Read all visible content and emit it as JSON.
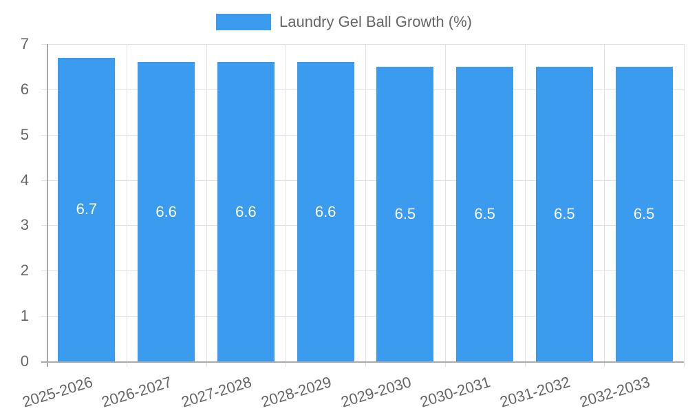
{
  "chart_data": {
    "type": "bar",
    "title": "",
    "legend": {
      "position": "top",
      "entries": [
        "Laundry Gel Ball Growth (%)"
      ]
    },
    "categories": [
      "2025-2026",
      "2026-2027",
      "2027-2028",
      "2028-2029",
      "2029-2030",
      "2030-2031",
      "2031-2032",
      "2032-2033"
    ],
    "series": [
      {
        "name": "Laundry Gel Ball Growth (%)",
        "color": "#3a9bef",
        "values": [
          6.7,
          6.6,
          6.6,
          6.6,
          6.5,
          6.5,
          6.5,
          6.5
        ]
      }
    ],
    "value_labels": [
      "6.7",
      "6.6",
      "6.6",
      "6.6",
      "6.5",
      "6.5",
      "6.5",
      "6.5"
    ],
    "xlabel": "",
    "ylabel": "",
    "ylim": [
      0,
      7
    ],
    "yticks": [
      "0",
      "1",
      "2",
      "3",
      "4",
      "5",
      "6",
      "7"
    ],
    "grid": true
  }
}
